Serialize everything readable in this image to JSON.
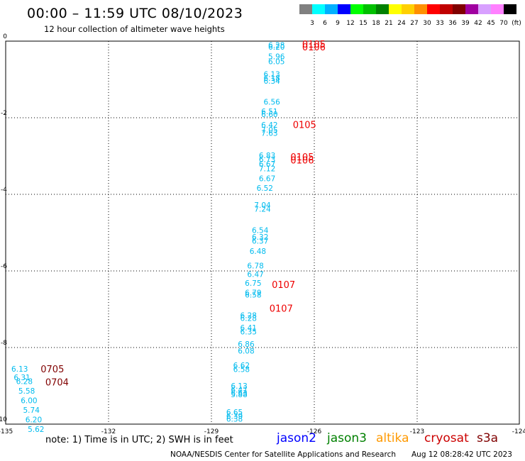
{
  "header": {
    "title": "00:00 – 11:59 UTC 08/10/2023",
    "subtitle": "12 hour collection of altimeter wave heights"
  },
  "colorbar": {
    "colors": [
      "#808080",
      "#00ffff",
      "#00b0ff",
      "#0000ff",
      "#00ff00",
      "#00c000",
      "#008000",
      "#ffff00",
      "#ffd000",
      "#ff9000",
      "#ff0000",
      "#c00000",
      "#800000",
      "#a000a0",
      "#d8a0ff",
      "#ff80ff",
      "#000000"
    ],
    "labels": [
      "3",
      "6",
      "9",
      "12",
      "15",
      "18",
      "21",
      "24",
      "27",
      "30",
      "33",
      "36",
      "39",
      "42",
      "45",
      "70",
      "(ft)"
    ]
  },
  "chart_data": {
    "type": "scatter",
    "xlim": [
      -135,
      -124
    ],
    "ylim": [
      -10,
      0
    ],
    "xticks": [
      "-135",
      "-132",
      "-129",
      "-126",
      "-123",
      "-124"
    ],
    "yticks": [
      "0",
      "-2",
      "-4",
      "-6",
      "-8",
      "-10"
    ],
    "grid": true,
    "height_labels": [
      {
        "x": -129.2,
        "y": -0.12,
        "text": "6.28"
      },
      {
        "x": -129.2,
        "y": -0.17,
        "text": "6.20"
      },
      {
        "x": -129.2,
        "y": -0.42,
        "text": "5.96"
      },
      {
        "x": -129.2,
        "y": -0.55,
        "text": "6.05"
      },
      {
        "x": -129.3,
        "y": -0.88,
        "text": "6.13"
      },
      {
        "x": -129.3,
        "y": -0.98,
        "text": "6.18"
      },
      {
        "x": -129.3,
        "y": -1.06,
        "text": "6.34"
      },
      {
        "x": -129.3,
        "y": -1.6,
        "text": "6.56"
      },
      {
        "x": -129.35,
        "y": -1.85,
        "text": "6.51"
      },
      {
        "x": -129.35,
        "y": -1.93,
        "text": "6.60"
      },
      {
        "x": -129.35,
        "y": -2.2,
        "text": "6.42"
      },
      {
        "x": -129.35,
        "y": -2.33,
        "text": "7.05"
      },
      {
        "x": -129.35,
        "y": -2.42,
        "text": "7.63"
      },
      {
        "x": -129.4,
        "y": -3.0,
        "text": "6.83"
      },
      {
        "x": -129.4,
        "y": -3.1,
        "text": "6.73"
      },
      {
        "x": -129.4,
        "y": -3.22,
        "text": "6.67"
      },
      {
        "x": -129.4,
        "y": -3.34,
        "text": "7.12"
      },
      {
        "x": -129.4,
        "y": -3.6,
        "text": "6.67"
      },
      {
        "x": -129.45,
        "y": -3.85,
        "text": "6.52"
      },
      {
        "x": -129.5,
        "y": -4.3,
        "text": "7.04"
      },
      {
        "x": -129.5,
        "y": -4.4,
        "text": "7.24"
      },
      {
        "x": -129.55,
        "y": -4.95,
        "text": "6.54"
      },
      {
        "x": -129.55,
        "y": -5.13,
        "text": "6.32"
      },
      {
        "x": -129.55,
        "y": -5.23,
        "text": "6.37"
      },
      {
        "x": -129.6,
        "y": -5.5,
        "text": "6.48"
      },
      {
        "x": -129.65,
        "y": -5.88,
        "text": "6.78"
      },
      {
        "x": -129.65,
        "y": -6.1,
        "text": "6.47"
      },
      {
        "x": -129.7,
        "y": -6.33,
        "text": "6.75"
      },
      {
        "x": -129.7,
        "y": -6.58,
        "text": "6.79"
      },
      {
        "x": -129.7,
        "y": -6.64,
        "text": "6.58"
      },
      {
        "x": -129.8,
        "y": -7.18,
        "text": "6.28"
      },
      {
        "x": -129.8,
        "y": -7.25,
        "text": "6.28"
      },
      {
        "x": -129.8,
        "y": -7.5,
        "text": "6.41"
      },
      {
        "x": -129.8,
        "y": -7.6,
        "text": "6.35"
      },
      {
        "x": -129.85,
        "y": -7.93,
        "text": "6.86"
      },
      {
        "x": -129.85,
        "y": -8.1,
        "text": "6.08"
      },
      {
        "x": -129.95,
        "y": -8.48,
        "text": "6.62"
      },
      {
        "x": -129.95,
        "y": -8.58,
        "text": "6.58"
      },
      {
        "x": -130.0,
        "y": -9.02,
        "text": "6.13"
      },
      {
        "x": -130.0,
        "y": -9.12,
        "text": "6.47"
      },
      {
        "x": -130.0,
        "y": -9.2,
        "text": "6.63"
      },
      {
        "x": -130.0,
        "y": -9.24,
        "text": "5.88"
      },
      {
        "x": -130.1,
        "y": -9.7,
        "text": "6.65"
      },
      {
        "x": -130.1,
        "y": -9.81,
        "text": "6.39"
      },
      {
        "x": -130.1,
        "y": -9.88,
        "text": "6.38"
      },
      {
        "x": -134.7,
        "y": -8.57,
        "text": "6.13"
      },
      {
        "x": -134.65,
        "y": -8.8,
        "text": "6.31"
      },
      {
        "x": -134.6,
        "y": -8.9,
        "text": "6.28"
      },
      {
        "x": -134.55,
        "y": -9.15,
        "text": "5.58"
      },
      {
        "x": -134.5,
        "y": -9.4,
        "text": "6.00"
      },
      {
        "x": -134.45,
        "y": -9.65,
        "text": "5.74"
      },
      {
        "x": -134.4,
        "y": -9.9,
        "text": "6.20"
      },
      {
        "x": -134.35,
        "y": -10.15,
        "text": "5.62"
      }
    ],
    "time_labels": [
      {
        "x": -128.4,
        "y": -0.1,
        "text": "0105",
        "color": "#ee0000"
      },
      {
        "x": -128.4,
        "y": -0.18,
        "text": "0106",
        "color": "#ee0000"
      },
      {
        "x": -128.6,
        "y": -2.2,
        "text": "0105",
        "color": "#ee0000"
      },
      {
        "x": -128.65,
        "y": -3.05,
        "text": "0105",
        "color": "#ee0000"
      },
      {
        "x": -128.65,
        "y": -3.13,
        "text": "0106",
        "color": "#ee0000"
      },
      {
        "x": -129.05,
        "y": -6.38,
        "text": "0107",
        "color": "#ee0000"
      },
      {
        "x": -129.1,
        "y": -7.0,
        "text": "0107",
        "color": "#ee0000"
      },
      {
        "x": -134.0,
        "y": -8.58,
        "text": "0705",
        "color": "#800000"
      },
      {
        "x": -133.9,
        "y": -8.93,
        "text": "0704",
        "color": "#800000"
      }
    ]
  },
  "legend": [
    {
      "name": "jason2",
      "color": "#0000ff"
    },
    {
      "name": "jason3",
      "color": "#008000"
    },
    {
      "name": "altika",
      "color": "#ff9900"
    },
    {
      "name": "cryosat",
      "color": "#cc0000"
    },
    {
      "name": "s3a",
      "color": "#800000"
    }
  ],
  "note": "note:  1) Time is in UTC;  2) SWH is in feet",
  "footer": {
    "left": "NOAA/NESDIS Center for Satellite Applications and Research",
    "right": "Aug 12 08:28:42 UTC 2023"
  }
}
